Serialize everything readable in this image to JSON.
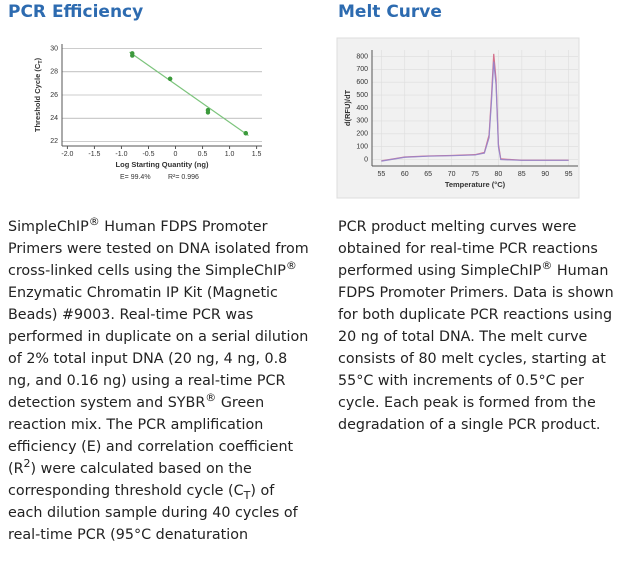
{
  "chart_data": [
    {
      "type": "scatter",
      "title": "PCR Efficiency",
      "x_label": "Log Starting Quantity (ng)",
      "y_label": [
        {
          "t": "Threshold Cycle (C"
        },
        {
          "sub": "T"
        },
        {
          "t": ")"
        }
      ],
      "annotations": [
        "E= 99.4%",
        "R²= 0.996"
      ],
      "x": [
        -0.8,
        -0.8,
        -0.1,
        -0.1,
        0.6,
        0.6,
        1.3,
        1.3
      ],
      "values": [
        29.6,
        29.4,
        27.4,
        27.4,
        24.7,
        24.5,
        22.7,
        22.7
      ],
      "color": "#3c9a3c",
      "trendline": {
        "x": [
          -0.85,
          1.35
        ],
        "values": [
          29.7,
          22.5
        ],
        "color": "#7cc47c"
      },
      "xlim": [
        -2.1,
        1.6
      ],
      "xticks": [
        {
          "value": -2,
          "label": "-2.0"
        },
        -1.5,
        {
          "value": -1,
          "label": "-1.0"
        },
        -0.5,
        0,
        0.5,
        {
          "value": 1,
          "label": "1.0"
        },
        1.5
      ],
      "ylim": [
        21.6,
        30.4
      ],
      "yticks": [
        22,
        24,
        26,
        28,
        30
      ],
      "grid": true
    },
    {
      "type": "line",
      "title": "Melt Curve",
      "x_label": "Temperature (°C)",
      "y_label": "d(RFU)/dT",
      "x": [
        55,
        60,
        65,
        70,
        75,
        77,
        78,
        78.5,
        79,
        79.5,
        80,
        80.5,
        85,
        90,
        95
      ],
      "series": [
        {
          "color": "#d4708c",
          "values": [
            -10,
            20,
            28,
            32,
            38,
            55,
            190,
            480,
            820,
            620,
            120,
            5,
            -5,
            -5,
            -5
          ]
        },
        {
          "color": "#9a86c8",
          "values": [
            -12,
            18,
            26,
            30,
            36,
            50,
            170,
            440,
            760,
            580,
            100,
            0,
            -6,
            -6,
            -6
          ]
        }
      ],
      "xlim": [
        53,
        97
      ],
      "xticks": [
        55,
        60,
        65,
        70,
        75,
        80,
        85,
        90,
        95
      ],
      "ylim": [
        -50,
        850
      ],
      "yticks": [
        0,
        100,
        200,
        300,
        400,
        500,
        600,
        700,
        800
      ],
      "grid": true
    }
  ],
  "left_text": [
    {
      "t": "SimpleChIP"
    },
    {
      "sup": "®"
    },
    {
      "t": " Human FDPS Promoter Primers were tested on DNA isolated from cross-linked cells using the SimpleChIP"
    },
    {
      "sup": "®"
    },
    {
      "t": " Enzymatic Chromatin IP Kit (Magnetic Beads) #9003. Real-time PCR was performed in duplicate on a serial dilution of 2% total input DNA (20 ng, 4 ng, 0.8 ng, and 0.16 ng) using a real-time PCR detection system and SYBR"
    },
    {
      "sup": "®"
    },
    {
      "t": " Green reaction mix. The PCR amplification efficiency (E) and correlation coefficient (R"
    },
    {
      "sup": "2"
    },
    {
      "t": ") were calculated based on the corresponding threshold cycle (C"
    },
    {
      "sub": "T"
    },
    {
      "t": ") of each dilution sample during 40 cycles of real-time PCR (95°C denaturation"
    }
  ],
  "right_text": [
    {
      "t": "PCR product melting curves were obtained for real-time PCR reactions performed using SimpleChIP"
    },
    {
      "sup": "®"
    },
    {
      "t": " Human FDPS Promoter Primers. Data is shown for both duplicate PCR reactions using 20 ng of total DNA. The melt curve consists of 80 melt cycles, starting at 55°C with increments of 0.5°C per cycle. Each peak is formed from the degradation of a single PCR product."
    }
  ]
}
